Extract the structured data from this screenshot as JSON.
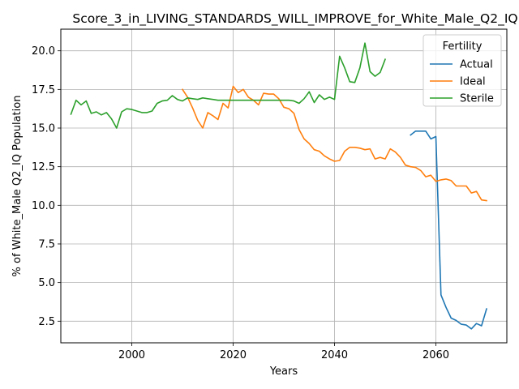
{
  "chart_data": {
    "type": "line",
    "title": "Score_3_in_LIVING_STANDARDS_WILL_IMPROVE_for_White_Male_Q2_IQ",
    "xlabel": "Years",
    "ylabel": "% of White_Male Q2_IQ Population",
    "xlim": [
      1986,
      2074
    ],
    "ylim": [
      1.1,
      21.4
    ],
    "xticks": [
      2000,
      2020,
      2040,
      2060
    ],
    "xtick_labels": [
      "2000",
      "2020",
      "2040",
      "2060"
    ],
    "yticks": [
      2.5,
      5.0,
      7.5,
      10.0,
      12.5,
      15.0,
      17.5,
      20.0
    ],
    "ytick_labels": [
      "2.5",
      "5.0",
      "7.5",
      "10.0",
      "12.5",
      "15.0",
      "17.5",
      "20.0"
    ],
    "grid": true,
    "legend": {
      "title": "Fertility",
      "placement": "top-right"
    },
    "series": [
      {
        "name": "Actual",
        "color": "#1f77b4",
        "x": [
          2055,
          2056,
          2057,
          2058,
          2059,
          2060,
          2061,
          2062,
          2063,
          2064,
          2065,
          2066,
          2067,
          2068,
          2069,
          2070
        ],
        "y": [
          14.55,
          14.8,
          14.8,
          14.8,
          14.3,
          14.45,
          4.2,
          3.4,
          2.7,
          2.55,
          2.3,
          2.25,
          2.0,
          2.35,
          2.2,
          3.3
        ]
      },
      {
        "name": "Ideal",
        "color": "#ff7f0e",
        "x": [
          2010,
          2011,
          2012,
          2013,
          2014,
          2015,
          2016,
          2017,
          2018,
          2019,
          2020,
          2021,
          2022,
          2023,
          2024,
          2025,
          2026,
          2027,
          2028,
          2029,
          2030,
          2031,
          2032,
          2033,
          2034,
          2035,
          2036,
          2037,
          2038,
          2039,
          2040,
          2041,
          2042,
          2043,
          2044,
          2045,
          2046,
          2047,
          2048,
          2049,
          2050,
          2051,
          2052,
          2053,
          2054,
          2055,
          2056,
          2057,
          2058,
          2059,
          2060,
          2061,
          2062,
          2063,
          2064,
          2065,
          2066,
          2067,
          2068,
          2069,
          2070
        ],
        "y": [
          17.5,
          17.0,
          16.3,
          15.5,
          15.0,
          16.0,
          15.8,
          15.55,
          16.6,
          16.3,
          17.7,
          17.3,
          17.5,
          17.0,
          16.8,
          16.5,
          17.25,
          17.2,
          17.2,
          16.9,
          16.35,
          16.25,
          15.95,
          14.9,
          14.3,
          14.0,
          13.6,
          13.5,
          13.2,
          13.0,
          12.85,
          12.9,
          13.5,
          13.75,
          13.75,
          13.7,
          13.6,
          13.65,
          13.0,
          13.1,
          13.0,
          13.65,
          13.45,
          13.1,
          12.6,
          12.5,
          12.45,
          12.25,
          11.85,
          11.95,
          11.55,
          11.65,
          11.7,
          11.6,
          11.25,
          11.25,
          11.25,
          10.8,
          10.9,
          10.35,
          10.3
        ]
      },
      {
        "name": "Sterile",
        "color": "#2ca02c",
        "x": [
          1988,
          1989,
          1990,
          1991,
          1992,
          1993,
          1994,
          1995,
          1996,
          1997,
          1998,
          1999,
          2000,
          2001,
          2002,
          2003,
          2004,
          2005,
          2006,
          2007,
          2008,
          2009,
          2010,
          2011,
          2012,
          2013,
          2014,
          2015,
          2016,
          2017,
          2018,
          2019,
          2020,
          2021,
          2022,
          2023,
          2024,
          2025,
          2026,
          2027,
          2028,
          2029,
          2030,
          2031,
          2032,
          2033,
          2034,
          2035,
          2036,
          2037,
          2038,
          2039,
          2040,
          2041,
          2042,
          2043,
          2044,
          2045,
          2046,
          2047,
          2048,
          2049,
          2050
        ],
        "y": [
          15.9,
          16.8,
          16.5,
          16.75,
          15.95,
          16.05,
          15.85,
          16.0,
          15.6,
          15.0,
          16.05,
          16.25,
          16.2,
          16.1,
          16.0,
          16.0,
          16.1,
          16.6,
          16.75,
          16.8,
          17.1,
          16.85,
          16.75,
          16.95,
          16.9,
          16.85,
          16.95,
          16.9,
          16.85,
          16.8,
          16.8,
          16.8,
          16.8,
          16.8,
          16.8,
          16.8,
          16.8,
          16.8,
          16.8,
          16.8,
          16.8,
          16.8,
          16.8,
          16.8,
          16.75,
          16.6,
          16.9,
          17.35,
          16.65,
          17.15,
          16.85,
          17.0,
          16.85,
          19.65,
          18.9,
          18.0,
          17.95,
          18.9,
          20.5,
          18.65,
          18.35,
          18.6,
          19.45
        ]
      }
    ]
  }
}
